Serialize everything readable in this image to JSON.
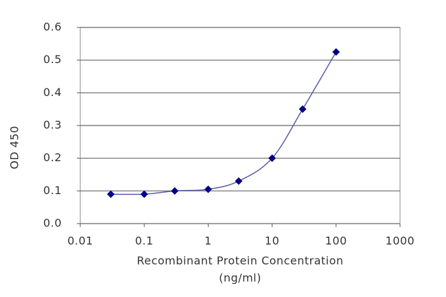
{
  "chart_data": {
    "type": "line",
    "xlabel": [
      "Recombinant Protein Concentration",
      "(ng/ml)"
    ],
    "ylabel": "OD 450",
    "x": [
      0.03,
      0.1,
      0.3,
      1,
      3,
      10,
      30,
      100
    ],
    "series": [
      {
        "name": "OD 450",
        "color": "#000080",
        "line_color": "#5a5aa8",
        "values": [
          0.09,
          0.09,
          0.1,
          0.105,
          0.13,
          0.2,
          0.35,
          0.525
        ]
      }
    ],
    "xscale": "log",
    "xlim": [
      0.01,
      1000
    ],
    "xticks": [
      0.01,
      0.1,
      1,
      10,
      100,
      1000
    ],
    "ylim": [
      0,
      0.6
    ],
    "yticks": [
      {
        "value": 0,
        "label": "0.0"
      },
      0.1,
      0.2,
      0.3,
      0.4,
      0.5,
      0.6
    ],
    "grid": true
  }
}
